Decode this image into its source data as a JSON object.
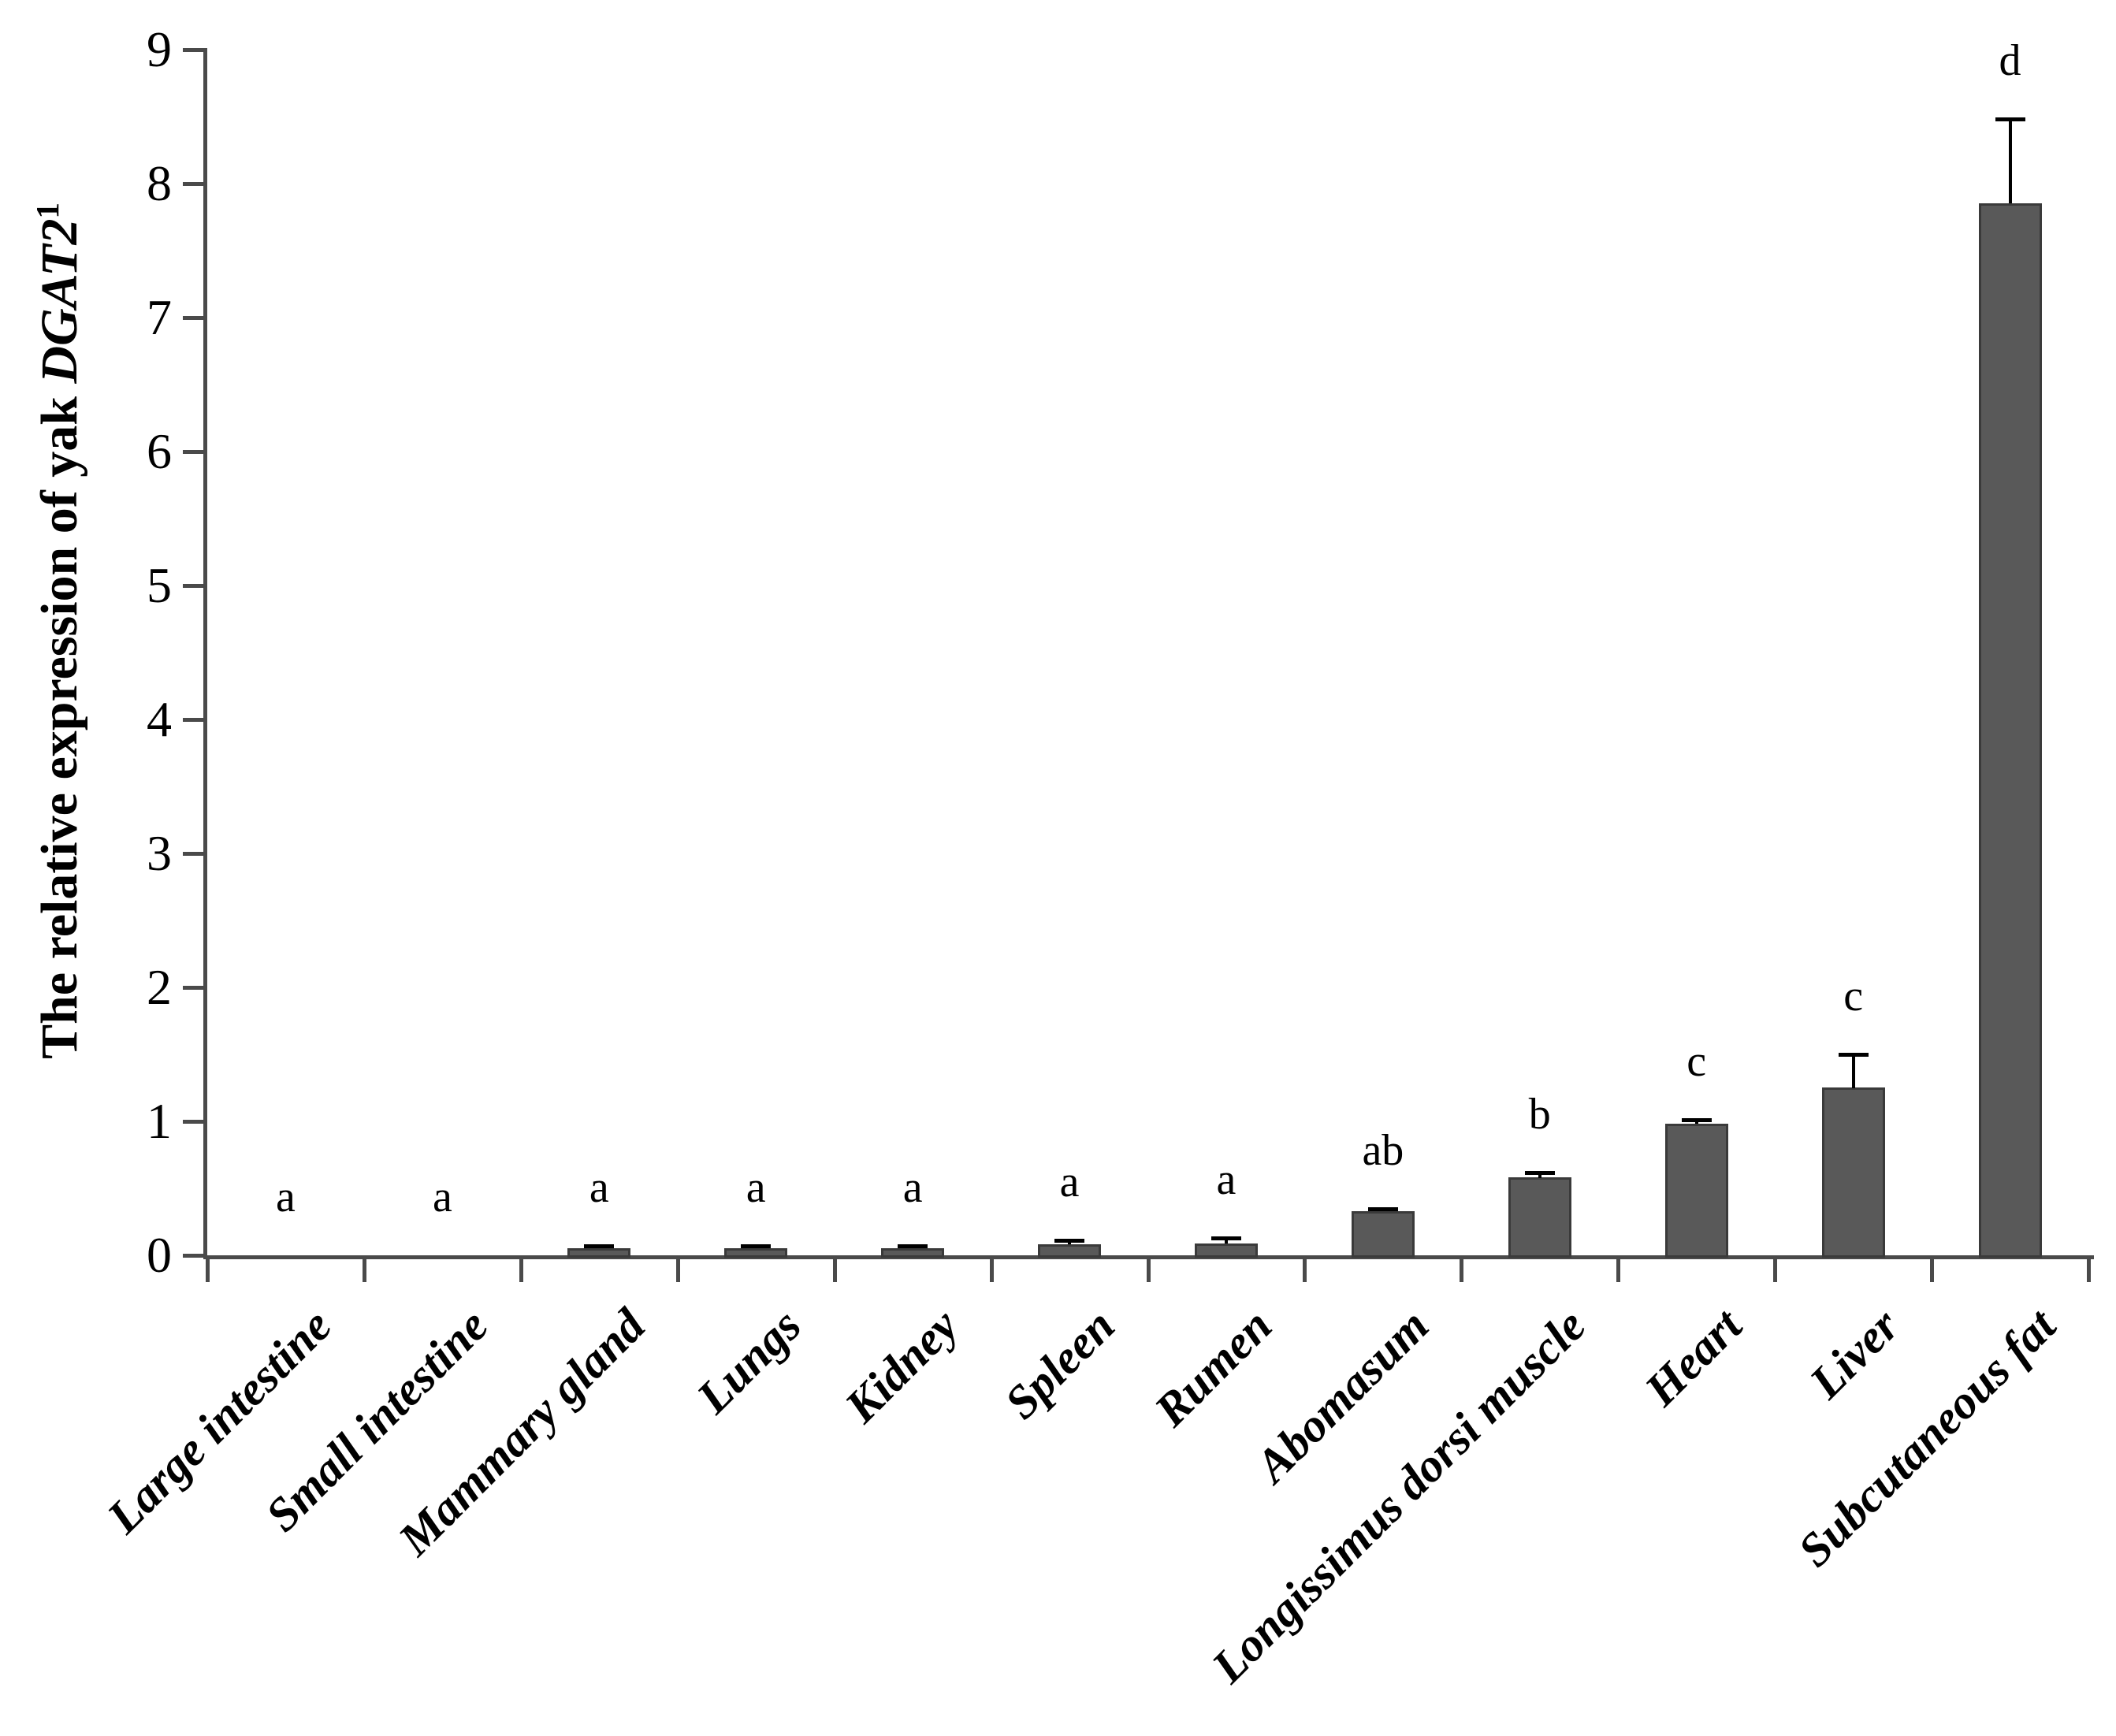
{
  "y_axis": {
    "title_prefix": "The relative expression of yak ",
    "title_gene": "DGAT2",
    "title_sup": "1",
    "ticks": [
      "0",
      "1",
      "2",
      "3",
      "4",
      "5",
      "6",
      "7",
      "8",
      "9"
    ]
  },
  "chart_data": {
    "type": "bar",
    "title": "",
    "xlabel": "",
    "ylabel": "The relative expression of yak DGAT2¹",
    "ylim": [
      0,
      9
    ],
    "grid": false,
    "legend": false,
    "categories": [
      "Large intestine",
      "Small intestine",
      "Mammary gland",
      "Lungs",
      "Kidney",
      "Spleen",
      "Rumen",
      "Abomasum",
      "Longissimus dorsi muscle",
      "Heart",
      "Liver",
      "Subcutaneous fat"
    ],
    "values": [
      0,
      0,
      0.05,
      0.05,
      0.05,
      0.08,
      0.09,
      0.33,
      0.58,
      0.98,
      1.25,
      7.85
    ],
    "errors": [
      0,
      0,
      0.02,
      0.02,
      0.02,
      0.03,
      0.04,
      0.02,
      0.04,
      0.03,
      0.25,
      0.63
    ],
    "sig_letters": [
      "a",
      "a",
      "a",
      "a",
      "a",
      "a",
      "a",
      "ab",
      "b",
      "c",
      "c",
      "d"
    ],
    "bar_color": "#595959",
    "bar_border_color": "#3a3a3a",
    "axis_color": "#4a4a4a",
    "error_color": "#000000"
  }
}
